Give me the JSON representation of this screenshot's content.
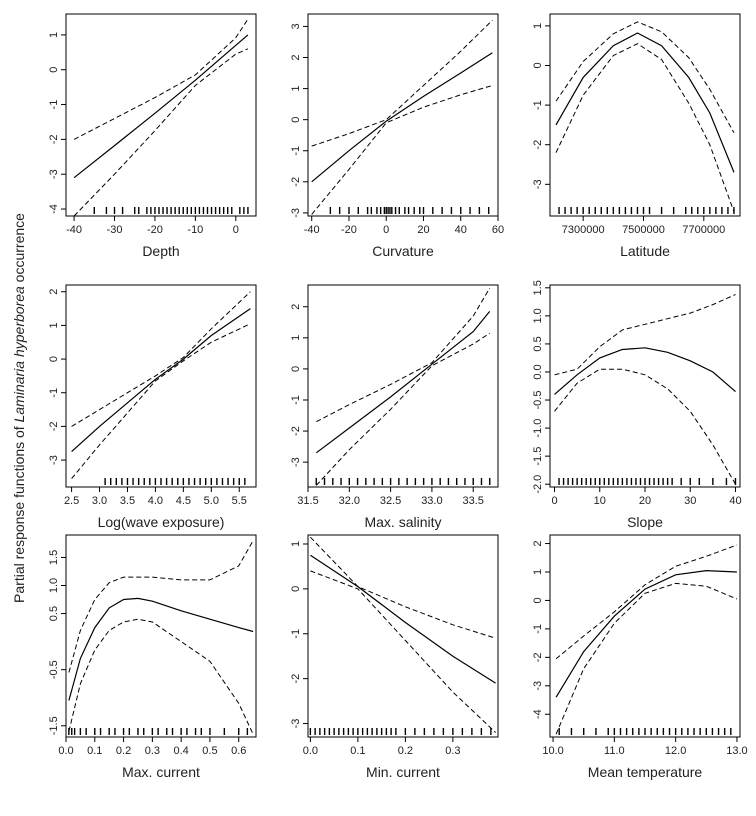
{
  "figure": {
    "ylabel_prefix": "Partial response functions of ",
    "ylabel_species": "Laminaria hyperborea",
    "ylabel_suffix": " occurrence"
  },
  "chart_data": [
    {
      "type": "line",
      "xlabel": "Depth",
      "xlim": [
        -42,
        5
      ],
      "ylim": [
        -4.2,
        1.6
      ],
      "xticks": [
        -40,
        -30,
        -20,
        -10,
        0
      ],
      "xticklabels": [
        "-40",
        "-30",
        "-20",
        "-10",
        "0"
      ],
      "yticks": [
        -4,
        -3,
        -2,
        -1,
        0,
        1
      ],
      "yticklabels": [
        "-4",
        "-3",
        "-2",
        "-1",
        "0",
        "1"
      ],
      "x": [
        -40,
        -30,
        -20,
        -10,
        0,
        3
      ],
      "fit": [
        -3.1,
        -2.18,
        -1.25,
        -0.3,
        0.7,
        1.0
      ],
      "upper": [
        -2.0,
        -1.4,
        -0.8,
        -0.15,
        0.92,
        1.45
      ],
      "lower": [
        -4.2,
        -3.0,
        -1.75,
        -0.45,
        0.45,
        0.6
      ],
      "rug": [
        -35,
        -32,
        -30,
        -28,
        -25,
        -24,
        -22,
        -21,
        -20,
        -19,
        -18,
        -17,
        -16,
        -15,
        -14,
        -13,
        -12,
        -11,
        -10,
        -9,
        -8,
        -7,
        -6,
        -5,
        -4,
        -3,
        -2,
        -1,
        1,
        2,
        3
      ]
    },
    {
      "type": "line",
      "xlabel": "Curvature",
      "xlim": [
        -42,
        60
      ],
      "ylim": [
        -3.1,
        3.4
      ],
      "xticks": [
        -40,
        -20,
        0,
        20,
        40,
        60
      ],
      "xticklabels": [
        "-40",
        "-20",
        "0",
        "20",
        "40",
        "60"
      ],
      "yticks": [
        -3,
        -2,
        -1,
        0,
        1,
        2,
        3
      ],
      "yticklabels": [
        "-3",
        "-2",
        "-1",
        "0",
        "1",
        "2",
        "3"
      ],
      "x": [
        -40,
        -20,
        0,
        20,
        40,
        57
      ],
      "fit": [
        -2.0,
        -1.0,
        -0.05,
        0.75,
        1.5,
        2.15
      ],
      "upper": [
        -0.85,
        -0.45,
        0.0,
        1.1,
        2.2,
        3.2
      ],
      "lower": [
        -3.05,
        -1.6,
        -0.1,
        0.4,
        0.8,
        1.1
      ],
      "rug": [
        -30,
        -25,
        -20,
        -15,
        -10,
        -8,
        -5,
        -3,
        -1,
        0,
        1,
        2,
        3,
        5,
        7,
        10,
        12,
        15,
        18,
        20,
        25,
        30,
        35,
        40,
        45,
        50,
        55
      ]
    },
    {
      "type": "line",
      "xlabel": "Latitude",
      "xlim": [
        7190000,
        7820000
      ],
      "ylim": [
        -3.8,
        1.3
      ],
      "xticks": [
        7300000,
        7500000,
        7700000
      ],
      "xticklabels": [
        "7300000",
        "7500000",
        "7700000"
      ],
      "yticks": [
        -3,
        -2,
        -1,
        0,
        1
      ],
      "yticklabels": [
        "-3",
        "-2",
        "-1",
        "0",
        "1"
      ],
      "x": [
        7210000,
        7300000,
        7400000,
        7480000,
        7560000,
        7650000,
        7720000,
        7800000
      ],
      "fit": [
        -1.5,
        -0.3,
        0.5,
        0.82,
        0.5,
        -0.3,
        -1.2,
        -2.7
      ],
      "upper": [
        -0.9,
        0.1,
        0.8,
        1.1,
        0.85,
        0.2,
        -0.6,
        -1.7
      ],
      "lower": [
        -2.2,
        -0.75,
        0.25,
        0.55,
        0.15,
        -0.95,
        -2.0,
        -3.7
      ],
      "rug": [
        7220000,
        7240000,
        7260000,
        7280000,
        7300000,
        7320000,
        7340000,
        7360000,
        7380000,
        7400000,
        7420000,
        7440000,
        7460000,
        7480000,
        7500000,
        7520000,
        7560000,
        7600000,
        7640000,
        7660000,
        7680000,
        7700000,
        7720000,
        7740000,
        7760000,
        7780000,
        7800000
      ]
    },
    {
      "type": "line",
      "xlabel": "Log(wave exposure)",
      "xlim": [
        2.4,
        5.8
      ],
      "ylim": [
        -3.8,
        2.2
      ],
      "xticks": [
        2.5,
        3.0,
        3.5,
        4.0,
        4.5,
        5.0,
        5.5
      ],
      "xticklabels": [
        "2.5",
        "3.0",
        "3.5",
        "4.0",
        "4.5",
        "5.0",
        "5.5"
      ],
      "yticks": [
        -3,
        -2,
        -1,
        0,
        1,
        2
      ],
      "yticklabels": [
        "-3",
        "-2",
        "-1",
        "0",
        "1",
        "2"
      ],
      "x": [
        2.5,
        3.0,
        3.5,
        4.0,
        4.5,
        5.0,
        5.7
      ],
      "fit": [
        -2.75,
        -2.0,
        -1.3,
        -0.6,
        0.0,
        0.7,
        1.5
      ],
      "upper": [
        -2.0,
        -1.5,
        -1.0,
        -0.5,
        0.05,
        0.9,
        2.0
      ],
      "lower": [
        -3.55,
        -2.55,
        -1.6,
        -0.65,
        -0.05,
        0.5,
        1.05
      ],
      "rug": [
        3.1,
        3.2,
        3.3,
        3.4,
        3.5,
        3.6,
        3.7,
        3.8,
        3.9,
        4.0,
        4.1,
        4.2,
        4.3,
        4.4,
        4.5,
        4.6,
        4.7,
        4.8,
        4.9,
        5.0,
        5.1,
        5.2,
        5.3,
        5.4,
        5.5,
        5.6
      ]
    },
    {
      "type": "line",
      "xlabel": "Max. salinity",
      "xlim": [
        31.5,
        33.8
      ],
      "ylim": [
        -3.8,
        2.7
      ],
      "xticks": [
        31.5,
        32.0,
        32.5,
        33.0,
        33.5
      ],
      "xticklabels": [
        "31.5",
        "32.0",
        "32.5",
        "33.0",
        "33.5"
      ],
      "yticks": [
        -3,
        -2,
        -1,
        0,
        1,
        2
      ],
      "yticklabels": [
        "-3",
        "-2",
        "-1",
        "0",
        "1",
        "2"
      ],
      "x": [
        31.6,
        32.0,
        32.5,
        33.0,
        33.5,
        33.7
      ],
      "fit": [
        -2.7,
        -1.9,
        -0.9,
        0.15,
        1.2,
        1.85
      ],
      "upper": [
        -1.7,
        -1.15,
        -0.5,
        0.2,
        1.7,
        2.6
      ],
      "lower": [
        -3.75,
        -2.6,
        -1.3,
        0.1,
        0.8,
        1.15
      ],
      "rug": [
        31.6,
        31.7,
        31.8,
        31.9,
        32.0,
        32.1,
        32.2,
        32.3,
        32.4,
        32.5,
        32.6,
        32.7,
        32.8,
        32.9,
        33.0,
        33.1,
        33.2,
        33.3,
        33.4,
        33.5,
        33.6,
        33.7
      ]
    },
    {
      "type": "line",
      "xlabel": "Slope",
      "xlim": [
        -1,
        41
      ],
      "ylim": [
        -2.05,
        1.55
      ],
      "xticks": [
        0,
        10,
        20,
        30,
        40
      ],
      "xticklabels": [
        "0",
        "10",
        "20",
        "30",
        "40"
      ],
      "yticks": [
        -2.0,
        -1.5,
        -1.0,
        -0.5,
        0.0,
        0.5,
        1.0,
        1.5
      ],
      "yticklabels": [
        "-2.0",
        "-1.5",
        "-1.0",
        "-0.5",
        "0.0",
        "0.5",
        "1.0",
        "1.5"
      ],
      "x": [
        0,
        5,
        10,
        15,
        20,
        25,
        30,
        35,
        40
      ],
      "fit": [
        -0.4,
        -0.05,
        0.25,
        0.4,
        0.43,
        0.35,
        0.2,
        0.0,
        -0.35
      ],
      "upper": [
        -0.05,
        0.05,
        0.45,
        0.75,
        0.85,
        0.95,
        1.05,
        1.2,
        1.38
      ],
      "lower": [
        -0.7,
        -0.2,
        0.05,
        0.05,
        -0.05,
        -0.3,
        -0.7,
        -1.3,
        -2.0
      ],
      "rug": [
        1,
        2,
        3,
        4,
        5,
        6,
        7,
        8,
        9,
        10,
        11,
        12,
        13,
        14,
        15,
        16,
        17,
        18,
        19,
        20,
        21,
        22,
        23,
        24,
        25,
        26,
        28,
        30,
        32,
        35,
        38,
        40
      ]
    },
    {
      "type": "line",
      "xlabel": "Max. current",
      "xlim": [
        0,
        0.66
      ],
      "ylim": [
        -1.7,
        1.9
      ],
      "xticks": [
        0.0,
        0.1,
        0.2,
        0.3,
        0.4,
        0.5,
        0.6
      ],
      "xticklabels": [
        "0.0",
        "0.1",
        "0.2",
        "0.3",
        "0.4",
        "0.5",
        "0.6"
      ],
      "yticks": [
        -1.5,
        -0.5,
        0.5,
        1.0,
        1.5
      ],
      "yticklabels": [
        "-1.5",
        "-0.5",
        "0.5",
        "1.0",
        "1.5"
      ],
      "x": [
        0.01,
        0.05,
        0.1,
        0.15,
        0.2,
        0.25,
        0.3,
        0.4,
        0.5,
        0.6,
        0.65
      ],
      "fit": [
        -1.05,
        -0.3,
        0.25,
        0.6,
        0.75,
        0.77,
        0.72,
        0.55,
        0.4,
        0.25,
        0.18
      ],
      "upper": [
        -0.55,
        0.2,
        0.75,
        1.05,
        1.15,
        1.15,
        1.15,
        1.1,
        1.1,
        1.35,
        1.8
      ],
      "lower": [
        -1.6,
        -0.75,
        -0.15,
        0.2,
        0.35,
        0.4,
        0.35,
        0.0,
        -0.35,
        -1.1,
        -1.65
      ],
      "rug": [
        0.01,
        0.02,
        0.03,
        0.05,
        0.07,
        0.1,
        0.12,
        0.15,
        0.17,
        0.2,
        0.22,
        0.25,
        0.27,
        0.3,
        0.32,
        0.35,
        0.37,
        0.4,
        0.42,
        0.45,
        0.47,
        0.5,
        0.55,
        0.6,
        0.63
      ]
    },
    {
      "type": "line",
      "xlabel": "Min. current",
      "xlim": [
        -0.005,
        0.395
      ],
      "ylim": [
        -3.3,
        1.2
      ],
      "xticks": [
        0.0,
        0.1,
        0.2,
        0.3
      ],
      "xticklabels": [
        "0.0",
        "0.1",
        "0.2",
        "0.3"
      ],
      "yticks": [
        -3,
        -2,
        -1,
        0,
        1
      ],
      "yticklabels": [
        "-3",
        "-2",
        "-1",
        "0",
        "1"
      ],
      "x": [
        0.0,
        0.1,
        0.2,
        0.3,
        0.39
      ],
      "fit": [
        0.75,
        0.05,
        -0.75,
        -1.5,
        -2.1
      ],
      "upper": [
        1.15,
        0.05,
        -0.4,
        -0.8,
        -1.1
      ],
      "lower": [
        0.4,
        0.0,
        -1.15,
        -2.3,
        -3.2
      ],
      "rug": [
        0.0,
        0.01,
        0.02,
        0.03,
        0.04,
        0.05,
        0.06,
        0.07,
        0.08,
        0.09,
        0.1,
        0.11,
        0.12,
        0.13,
        0.14,
        0.15,
        0.16,
        0.17,
        0.18,
        0.2,
        0.22,
        0.24,
        0.26,
        0.28,
        0.3,
        0.32,
        0.34,
        0.36,
        0.38
      ]
    },
    {
      "type": "line",
      "xlabel": "Mean temperature",
      "xlim": [
        9.95,
        13.05
      ],
      "ylim": [
        -4.8,
        2.3
      ],
      "xticks": [
        10.0,
        11.0,
        12.0,
        13.0
      ],
      "xticklabels": [
        "10.0",
        "11.0",
        "12.0",
        "13.0"
      ],
      "yticks": [
        -4,
        -3,
        -2,
        -1,
        0,
        1,
        2
      ],
      "yticklabels": [
        "-4",
        "-3",
        "-2",
        "-1",
        "0",
        "1",
        "2"
      ],
      "x": [
        10.05,
        10.5,
        11.0,
        11.5,
        12.0,
        12.5,
        13.0
      ],
      "fit": [
        -3.4,
        -1.8,
        -0.55,
        0.4,
        0.9,
        1.05,
        1.0
      ],
      "upper": [
        -2.05,
        -1.25,
        -0.4,
        0.55,
        1.2,
        1.55,
        1.95
      ],
      "lower": [
        -4.7,
        -2.4,
        -0.8,
        0.25,
        0.6,
        0.5,
        0.05
      ],
      "rug": [
        10.1,
        10.3,
        10.5,
        10.7,
        10.9,
        11.0,
        11.1,
        11.2,
        11.3,
        11.4,
        11.5,
        11.6,
        11.7,
        11.8,
        11.9,
        12.0,
        12.1,
        12.2,
        12.3,
        12.4,
        12.5,
        12.6,
        12.7,
        12.8,
        12.9
      ]
    }
  ]
}
